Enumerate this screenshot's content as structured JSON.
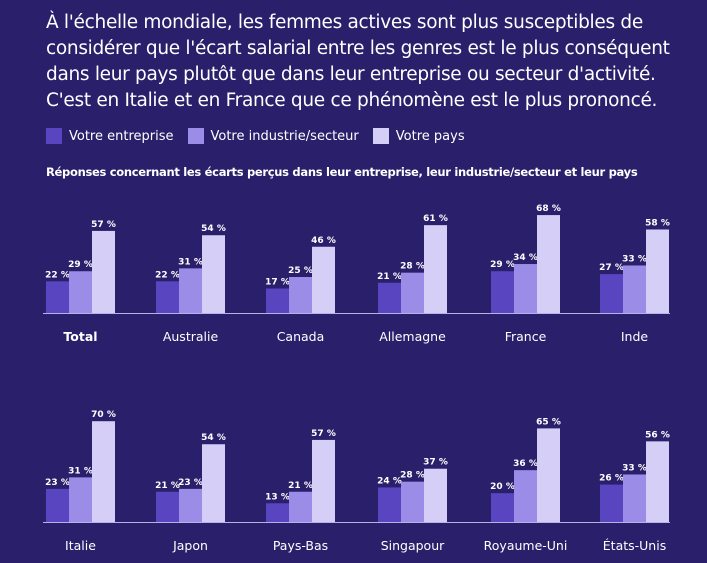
{
  "title": "À l'échelle mondiale, les femmes actives sont plus susceptibles de considérer que l'écart salarial entre les genres est le plus conséquent dans leur pays plutôt que dans leur entreprise ou secteur d'activité. C'est en Italie et en France que ce phénomène est le plus prononcé.",
  "colors": {
    "background": "#2a1f6b",
    "entreprise": "#5a45c0",
    "industrie": "#9b8ce8",
    "pays": "#d5cef6",
    "baseline": "#b9b0e8"
  },
  "chart_data": {
    "type": "bar",
    "title": "Réponses concernant les écarts perçus dans leur entreprise, leur industrie/secteur et leur pays",
    "legend_placement": "top-left",
    "grid": false,
    "ylim": [
      0,
      100
    ],
    "value_suffix": " %",
    "categories": [
      "Total",
      "Australie",
      "Canada",
      "Allemagne",
      "France",
      "Inde",
      "Italie",
      "Japon",
      "Pays-Bas",
      "Singapour",
      "Royaume-Uni",
      "États-Unis"
    ],
    "series": [
      {
        "name": "Votre entreprise",
        "values": [
          22,
          22,
          17,
          21,
          29,
          27,
          23,
          21,
          13,
          24,
          20,
          26
        ]
      },
      {
        "name": "Votre industrie/secteur",
        "values": [
          29,
          31,
          25,
          28,
          34,
          33,
          31,
          23,
          21,
          28,
          36,
          33
        ]
      },
      {
        "name": "Votre pays",
        "values": [
          57,
          54,
          46,
          61,
          68,
          58,
          70,
          54,
          57,
          37,
          65,
          56
        ]
      }
    ]
  }
}
